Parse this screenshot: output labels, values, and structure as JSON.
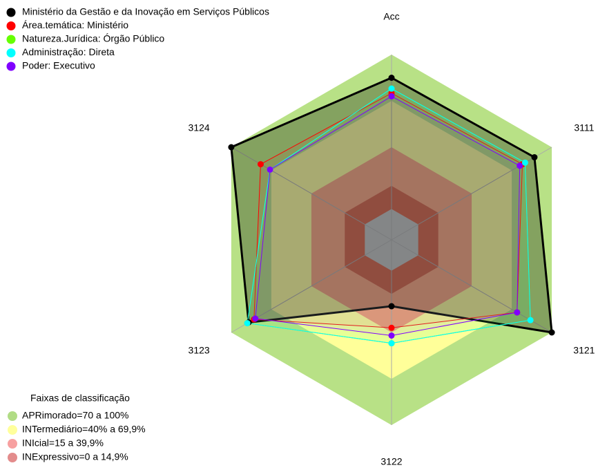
{
  "chart_data": {
    "type": "radar",
    "categories": [
      "Acc",
      "3111",
      "3121",
      "3122",
      "3123",
      "3124"
    ],
    "ylim": [
      -20,
      100
    ],
    "center_color": "#c0c0c0",
    "series": [
      {
        "name": "Ministério da Gestão e da Inovação em Serviços Públicos",
        "color": "#000000",
        "values": [
          85,
          87,
          100,
          23,
          87,
          100
        ]
      },
      {
        "name": "Área.temática: Ministério",
        "color": "#ff0000",
        "values": [
          75,
          78,
          74,
          37,
          83,
          78
        ]
      },
      {
        "name": "Natureza.Jurídica: Órgão Público",
        "color": "#66ff00",
        "values": [
          78,
          80,
          84,
          47,
          88,
          71
        ]
      },
      {
        "name": "Administração: Direta",
        "color": "#00ffff",
        "values": [
          78,
          80,
          84,
          47,
          88,
          71
        ]
      },
      {
        "name": "Poder: Executivo",
        "color": "#8000ff",
        "values": [
          73,
          76,
          74,
          42,
          82,
          71
        ]
      }
    ],
    "band_legend_title": "Faixas de classificação",
    "bands": [
      {
        "label": "APRimorado=70 a 100%",
        "max": 100,
        "color": "#b8e186",
        "legend_color": "#b1dc85"
      },
      {
        "label": "INTermediário=40% a 69,9%",
        "max": 70,
        "color": "#ffff99",
        "legend_color": "#ffff9c"
      },
      {
        "label": "INIcial=15 a 39,9%",
        "max": 40,
        "color": "#f8a07a",
        "legend_color": "#f7a0a0"
      },
      {
        "label": "INExpressivo=0 a 14,9%",
        "max": 15,
        "color": "#d55a40",
        "legend_color": "#e38c8c"
      }
    ]
  }
}
